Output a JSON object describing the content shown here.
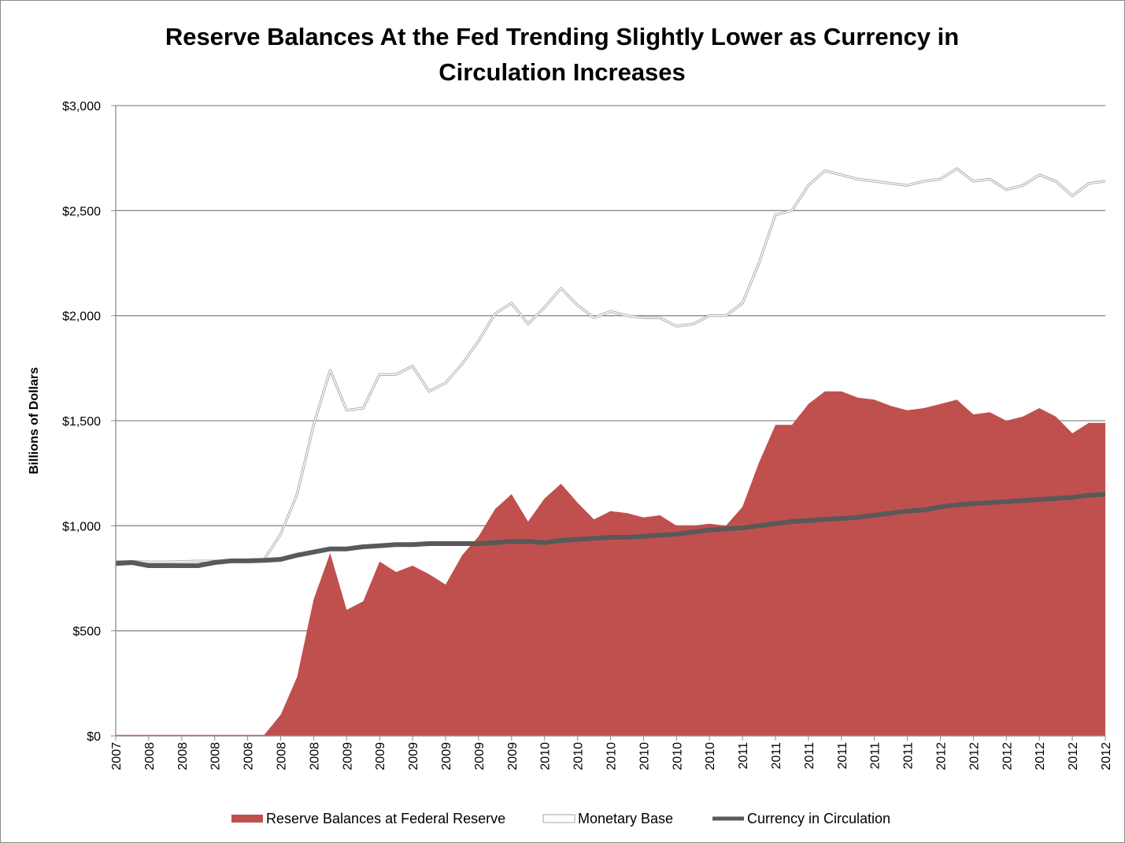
{
  "chart_data": {
    "type": "combo",
    "title": "Reserve Balances At the Fed Trending Slightly Lower as Currency in Circulation Increases",
    "y_label": "Billions of Dollars",
    "categories": [
      "2007",
      null,
      "2008",
      null,
      "2008",
      null,
      "2008",
      null,
      "2008",
      null,
      "2008",
      null,
      "2008",
      null,
      "2009",
      null,
      "2009",
      null,
      "2009",
      null,
      "2009",
      null,
      "2009",
      null,
      "2009",
      null,
      "2010",
      null,
      "2010",
      null,
      "2010",
      null,
      "2010",
      null,
      "2010",
      null,
      "2010",
      null,
      "2011",
      null,
      "2011",
      null,
      "2011",
      null,
      "2011",
      null,
      "2011",
      null,
      "2011",
      null,
      "2012",
      null,
      "2012",
      null,
      "2012",
      null,
      "2012",
      null,
      "2012",
      null,
      "2012"
    ],
    "ylim": [
      0,
      3000
    ],
    "yticks": [
      {
        "value": 0,
        "label": "$0"
      },
      {
        "value": 500,
        "label": "$500"
      },
      {
        "value": 1000,
        "label": "$1,000"
      },
      {
        "value": 1500,
        "label": "$1,500"
      },
      {
        "value": 2000,
        "label": "$2,000"
      },
      {
        "value": 2500,
        "label": "$2,500"
      },
      {
        "value": 3000,
        "label": "$3,000"
      }
    ],
    "grid": true,
    "legend": "bottom",
    "series": [
      {
        "name": "Reserve Balances at Federal Reserve",
        "type": "area",
        "color": "#c0504d",
        "values": [
          5,
          5,
          5,
          5,
          5,
          5,
          5,
          5,
          5,
          5,
          100,
          280,
          650,
          870,
          600,
          640,
          830,
          780,
          810,
          770,
          720,
          860,
          950,
          1080,
          1150,
          1020,
          1130,
          1200,
          1110,
          1030,
          1070,
          1060,
          1040,
          1050,
          1000,
          1000,
          1010,
          1000,
          1090,
          1300,
          1480,
          1480,
          1580,
          1640,
          1640,
          1610,
          1600,
          1570,
          1550,
          1560,
          1580,
          1600,
          1530,
          1540,
          1500,
          1520,
          1560,
          1520,
          1440,
          1490,
          1490
        ]
      },
      {
        "name": "Monetary Base",
        "type": "line-outlined",
        "color": "#ffffff",
        "outline": "#a6a6a6",
        "values": [
          830,
          830,
          828,
          828,
          830,
          832,
          832,
          835,
          838,
          840,
          960,
          1150,
          1480,
          1740,
          1550,
          1560,
          1720,
          1720,
          1760,
          1640,
          1680,
          1770,
          1880,
          2010,
          2060,
          1960,
          2040,
          2130,
          2050,
          1990,
          2020,
          2000,
          1990,
          1990,
          1950,
          1960,
          2000,
          2000,
          2060,
          2250,
          2480,
          2500,
          2620,
          2690,
          2670,
          2650,
          2640,
          2630,
          2620,
          2640,
          2650,
          2700,
          2640,
          2650,
          2600,
          2620,
          2670,
          2640,
          2570,
          2630,
          2640
        ]
      },
      {
        "name": "Currency in Circulation",
        "type": "line",
        "color": "#595959",
        "values": [
          820,
          825,
          810,
          810,
          810,
          810,
          825,
          833,
          833,
          835,
          840,
          860,
          875,
          890,
          890,
          900,
          905,
          910,
          910,
          915,
          915,
          915,
          915,
          920,
          925,
          925,
          920,
          930,
          935,
          940,
          945,
          945,
          950,
          955,
          960,
          970,
          980,
          985,
          990,
          1000,
          1010,
          1020,
          1025,
          1030,
          1035,
          1040,
          1050,
          1060,
          1070,
          1075,
          1090,
          1100,
          1105,
          1110,
          1115,
          1120,
          1125,
          1130,
          1135,
          1145,
          1150
        ]
      }
    ]
  }
}
